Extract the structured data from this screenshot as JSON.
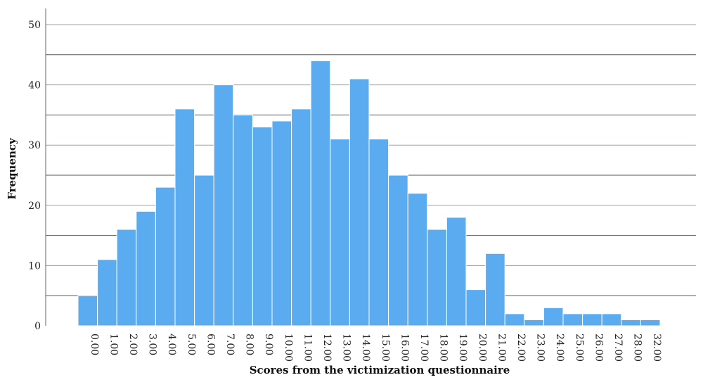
{
  "chart_data": {
    "type": "bar",
    "xlabel": "Scores from the victimization questionnaire",
    "ylabel": "Frequency",
    "ylim": [
      0,
      50
    ],
    "y_ticks": [
      0,
      10,
      20,
      30,
      40,
      50
    ],
    "grid": true,
    "categories": [
      "0.00",
      "1.00",
      "2.00",
      "3.00",
      "4.00",
      "5.00",
      "6.00",
      "7.00",
      "8.00",
      "9.00",
      "10.00",
      "11.00",
      "12.00",
      "13.00",
      "14.00",
      "15.00",
      "16.00",
      "17.00",
      "18.00",
      "19.00",
      "20.00",
      "21.00",
      "22.00",
      "23.00",
      "24.00",
      "25.00",
      "26.00",
      "27.00",
      "28.00",
      "32.00"
    ],
    "values": [
      5,
      11,
      16,
      19,
      23,
      36,
      25,
      40,
      35,
      33,
      34,
      36,
      44,
      31,
      41,
      31,
      25,
      22,
      16,
      18,
      6,
      12,
      2,
      1,
      3,
      2,
      2,
      2,
      1,
      1
    ],
    "colors": {
      "bar": "#5aabf0"
    }
  }
}
